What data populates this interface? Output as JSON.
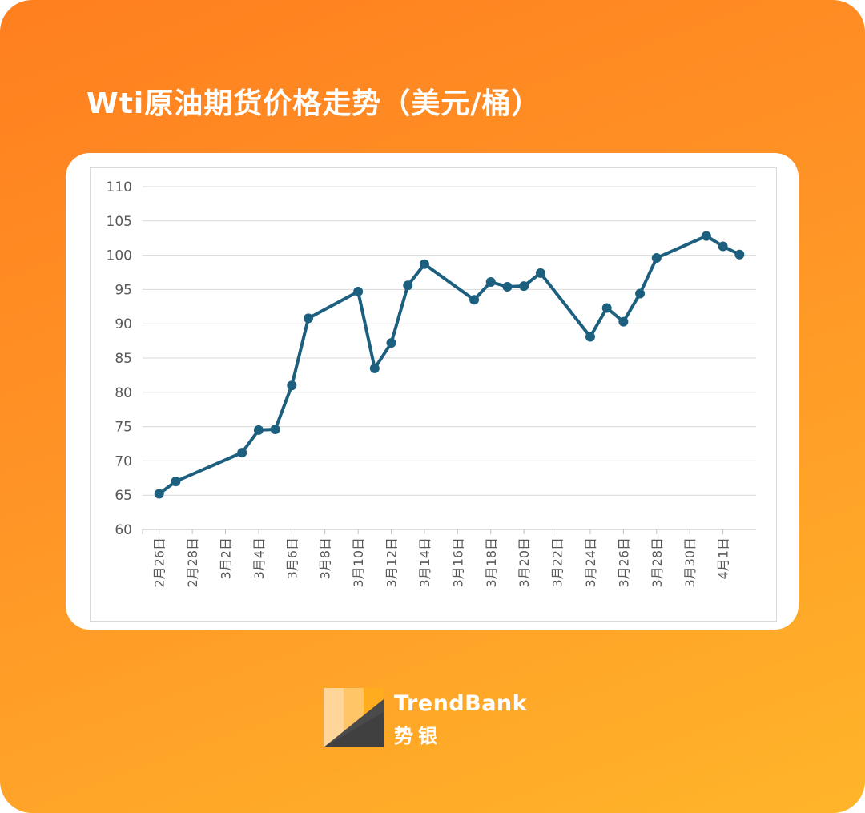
{
  "title": "Wti原油期货价格走势（美元/桶）",
  "colors": {
    "line": "#1c5f7e",
    "grid": "#d9d9d9",
    "axis_text": "#595959",
    "bg_start": "#ff7f1f",
    "bg_end": "#ffb52a"
  },
  "logo": {
    "name_en": "TrendBank",
    "name_cn": "势银",
    "icon": "trendbank-logo-icon"
  },
  "chart_data": {
    "type": "line",
    "title": "",
    "xlabel": "",
    "ylabel": "",
    "ylim": [
      60,
      110
    ],
    "yticks": [
      60,
      65,
      70,
      75,
      80,
      85,
      90,
      95,
      100,
      105,
      110
    ],
    "grid": true,
    "xtick_labels": [
      "2月26日",
      "2月28日",
      "3月2日",
      "3月4日",
      "3月6日",
      "3月8日",
      "3月10日",
      "3月12日",
      "3月14日",
      "3月16日",
      "3月18日",
      "3月20日",
      "3月22日",
      "3月24日",
      "3月26日",
      "3月28日",
      "3月30日",
      "4月1日"
    ],
    "x": [
      "2月26日",
      "2月27日",
      "3月3日",
      "3月4日",
      "3月5日",
      "3月6日",
      "3月7日",
      "3月10日",
      "3月11日",
      "3月12日",
      "3月13日",
      "3月14日",
      "3月17日",
      "3月18日",
      "3月19日",
      "3月20日",
      "3月21日",
      "3月24日",
      "3月25日",
      "3月26日",
      "3月27日",
      "3月28日",
      "3月31日",
      "4月1日",
      "4月2日"
    ],
    "values": [
      65.2,
      67.0,
      71.2,
      74.5,
      74.6,
      81.0,
      90.8,
      94.7,
      83.5,
      87.2,
      95.6,
      98.7,
      93.5,
      96.1,
      95.4,
      95.5,
      97.4,
      88.1,
      92.3,
      90.3,
      94.4,
      99.6,
      102.8,
      101.3,
      100.1
    ]
  }
}
